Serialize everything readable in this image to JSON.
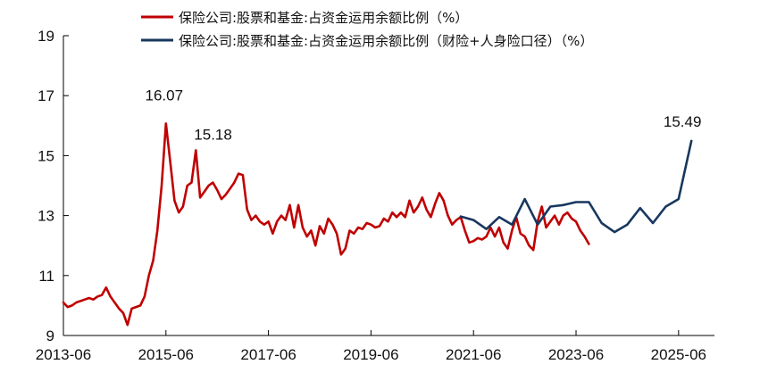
{
  "chart_data": {
    "type": "line",
    "title": "",
    "xlabel": "",
    "ylabel": "",
    "ylim": [
      9,
      19
    ],
    "yticks": [
      "9",
      "11",
      "13",
      "15",
      "17",
      "19"
    ],
    "xticks": [
      "2013-06",
      "2015-06",
      "2017-06",
      "2019-06",
      "2021-06",
      "2023-06",
      "2025-06"
    ],
    "grid": false,
    "legend_position": "top",
    "series": [
      {
        "name": "保险公司:股票和基金:占资金运用余额比例（%）",
        "color": "#c00000",
        "points": [
          [
            "2013-06",
            10.1
          ],
          [
            "2013-07",
            9.95
          ],
          [
            "2013-08",
            10.0
          ],
          [
            "2013-09",
            10.1
          ],
          [
            "2013-10",
            10.15
          ],
          [
            "2013-11",
            10.2
          ],
          [
            "2013-12",
            10.25
          ],
          [
            "2014-01",
            10.2
          ],
          [
            "2014-02",
            10.3
          ],
          [
            "2014-03",
            10.35
          ],
          [
            "2014-04",
            10.6
          ],
          [
            "2014-05",
            10.3
          ],
          [
            "2014-06",
            10.1
          ],
          [
            "2014-07",
            9.9
          ],
          [
            "2014-08",
            9.75
          ],
          [
            "2014-09",
            9.35
          ],
          [
            "2014-10",
            9.9
          ],
          [
            "2014-11",
            9.95
          ],
          [
            "2014-12",
            10.0
          ],
          [
            "2015-01",
            10.3
          ],
          [
            "2015-02",
            11.0
          ],
          [
            "2015-03",
            11.5
          ],
          [
            "2015-04",
            12.5
          ],
          [
            "2015-05",
            14.0
          ],
          [
            "2015-06",
            16.07
          ],
          [
            "2015-07",
            14.8
          ],
          [
            "2015-08",
            13.5
          ],
          [
            "2015-09",
            13.1
          ],
          [
            "2015-10",
            13.3
          ],
          [
            "2015-11",
            14.0
          ],
          [
            "2015-12",
            14.1
          ],
          [
            "2016-01",
            15.18
          ],
          [
            "2016-02",
            13.6
          ],
          [
            "2016-03",
            13.8
          ],
          [
            "2016-04",
            14.0
          ],
          [
            "2016-05",
            14.1
          ],
          [
            "2016-06",
            13.85
          ],
          [
            "2016-07",
            13.55
          ],
          [
            "2016-08",
            13.7
          ],
          [
            "2016-09",
            13.9
          ],
          [
            "2016-10",
            14.1
          ],
          [
            "2016-11",
            14.4
          ],
          [
            "2016-12",
            14.35
          ],
          [
            "2017-01",
            13.2
          ],
          [
            "2017-02",
            12.85
          ],
          [
            "2017-03",
            13.0
          ],
          [
            "2017-04",
            12.8
          ],
          [
            "2017-05",
            12.7
          ],
          [
            "2017-06",
            12.8
          ],
          [
            "2017-07",
            12.4
          ],
          [
            "2017-08",
            12.8
          ],
          [
            "2017-09",
            13.0
          ],
          [
            "2017-10",
            12.85
          ],
          [
            "2017-11",
            13.35
          ],
          [
            "2017-12",
            12.6
          ],
          [
            "2018-01",
            13.35
          ],
          [
            "2018-02",
            12.6
          ],
          [
            "2018-03",
            12.3
          ],
          [
            "2018-04",
            12.5
          ],
          [
            "2018-05",
            12.0
          ],
          [
            "2018-06",
            12.65
          ],
          [
            "2018-07",
            12.4
          ],
          [
            "2018-08",
            12.9
          ],
          [
            "2018-09",
            12.7
          ],
          [
            "2018-10",
            12.4
          ],
          [
            "2018-11",
            11.7
          ],
          [
            "2018-12",
            11.9
          ],
          [
            "2019-01",
            12.5
          ],
          [
            "2019-02",
            12.4
          ],
          [
            "2019-03",
            12.6
          ],
          [
            "2019-04",
            12.55
          ],
          [
            "2019-05",
            12.75
          ],
          [
            "2019-06",
            12.7
          ],
          [
            "2019-07",
            12.6
          ],
          [
            "2019-08",
            12.65
          ],
          [
            "2019-09",
            12.9
          ],
          [
            "2019-10",
            12.8
          ],
          [
            "2019-11",
            13.1
          ],
          [
            "2019-12",
            12.95
          ],
          [
            "2020-01",
            13.1
          ],
          [
            "2020-02",
            12.95
          ],
          [
            "2020-03",
            13.5
          ],
          [
            "2020-04",
            13.1
          ],
          [
            "2020-05",
            13.3
          ],
          [
            "2020-06",
            13.6
          ],
          [
            "2020-07",
            13.2
          ],
          [
            "2020-08",
            12.95
          ],
          [
            "2020-09",
            13.4
          ],
          [
            "2020-10",
            13.75
          ],
          [
            "2020-11",
            13.5
          ],
          [
            "2020-12",
            13.0
          ],
          [
            "2021-01",
            12.7
          ],
          [
            "2021-02",
            12.85
          ],
          [
            "2021-03",
            12.95
          ],
          [
            "2021-04",
            12.5
          ],
          [
            "2021-05",
            12.1
          ],
          [
            "2021-06",
            12.15
          ],
          [
            "2021-07",
            12.25
          ],
          [
            "2021-08",
            12.2
          ],
          [
            "2021-09",
            12.3
          ],
          [
            "2021-10",
            12.6
          ],
          [
            "2021-11",
            12.3
          ],
          [
            "2021-12",
            12.6
          ],
          [
            "2022-01",
            12.1
          ],
          [
            "2022-02",
            11.9
          ],
          [
            "2022-03",
            12.5
          ],
          [
            "2022-04",
            12.95
          ],
          [
            "2022-05",
            12.4
          ],
          [
            "2022-06",
            12.3
          ],
          [
            "2022-07",
            12.0
          ],
          [
            "2022-08",
            11.85
          ],
          [
            "2022-09",
            12.8
          ],
          [
            "2022-10",
            13.3
          ],
          [
            "2022-11",
            12.6
          ],
          [
            "2022-12",
            12.8
          ],
          [
            "2023-01",
            13.0
          ],
          [
            "2023-02",
            12.7
          ],
          [
            "2023-03",
            13.0
          ],
          [
            "2023-04",
            13.1
          ],
          [
            "2023-05",
            12.9
          ],
          [
            "2023-06",
            12.8
          ],
          [
            "2023-07",
            12.5
          ],
          [
            "2023-08",
            12.3
          ],
          [
            "2023-09",
            12.05
          ]
        ]
      },
      {
        "name": "保险公司:股票和基金:占资金运用余额比例（财险+人身险口径）（%）",
        "color": "#17375e",
        "points": [
          [
            "2021-03",
            12.97
          ],
          [
            "2021-06",
            12.85
          ],
          [
            "2021-09",
            12.55
          ],
          [
            "2021-12",
            12.95
          ],
          [
            "2022-03",
            12.7
          ],
          [
            "2022-06",
            13.55
          ],
          [
            "2022-09",
            12.7
          ],
          [
            "2022-12",
            13.3
          ],
          [
            "2023-03",
            13.35
          ],
          [
            "2023-06",
            13.45
          ],
          [
            "2023-09",
            13.45
          ],
          [
            "2023-12",
            12.75
          ],
          [
            "2024-03",
            12.45
          ],
          [
            "2024-06",
            12.7
          ],
          [
            "2024-09",
            13.25
          ],
          [
            "2024-12",
            12.75
          ],
          [
            "2025-03",
            13.3
          ],
          [
            "2025-06",
            13.55
          ],
          [
            "2025-09",
            15.49
          ]
        ]
      }
    ],
    "annotations": [
      {
        "label": "16.07",
        "x": "2015-06",
        "y": 16.07
      },
      {
        "label": "15.18",
        "x": "2016-01",
        "y": 15.18
      },
      {
        "label": "15.49",
        "x": "2025-09",
        "y": 15.49
      }
    ]
  }
}
